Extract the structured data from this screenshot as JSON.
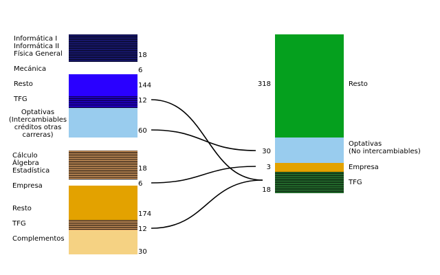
{
  "left": {
    "segments": [
      {
        "id": "basics-top",
        "value": "18",
        "color": "#1e1e8e",
        "stripe": "#000000",
        "labels": [
          "Informática I",
          "Informática II",
          "Física General"
        ]
      },
      {
        "id": "mecanica",
        "value": "6",
        "color": "#ffffff",
        "stripe": "",
        "labels": [
          "Mecánica"
        ]
      },
      {
        "id": "resto-top",
        "value": "144",
        "color": "#2a00ff",
        "stripe": "",
        "labels": [
          "Resto"
        ]
      },
      {
        "id": "tfg-top",
        "value": "12",
        "color": "#2a00ff",
        "stripe": "#000000",
        "labels": [
          "TFG"
        ]
      },
      {
        "id": "optativas-top",
        "value": "60",
        "color": "#99ccee",
        "stripe": "",
        "labels": [
          "Optativas",
          "(Intercambiables",
          "créditos otras",
          "carreras)"
        ]
      },
      {
        "id": "basics-bottom",
        "value": "18",
        "color": "#e8a868",
        "stripe": "#000000",
        "labels": [
          "Cálculo",
          "Álgebra",
          "Estadística"
        ]
      },
      {
        "id": "empresa-left",
        "value": "6",
        "color": "#ffffff",
        "stripe": "",
        "labels": [
          "Empresa"
        ]
      },
      {
        "id": "resto-bottom",
        "value": "174",
        "color": "#e3a200",
        "stripe": "",
        "labels": [
          "Resto"
        ]
      },
      {
        "id": "tfg-bottom",
        "value": "12",
        "color": "#e8a868",
        "stripe": "#000000",
        "labels": [
          "TFG"
        ]
      },
      {
        "id": "complementos",
        "value": "30",
        "color": "#f5d283",
        "stripe": "",
        "labels": [
          "Complementos"
        ]
      }
    ]
  },
  "right": {
    "segments": [
      {
        "id": "resto-right",
        "value": "318",
        "color": "#05a01e",
        "stripe": "",
        "labels": [
          "Resto"
        ]
      },
      {
        "id": "optativas-right",
        "value": "30",
        "color": "#99ccee",
        "stripe": "",
        "labels": [
          "Optativas",
          "(No intercambiables)"
        ]
      },
      {
        "id": "empresa-right",
        "value": "3",
        "color": "#e3a200",
        "stripe": "",
        "labels": [
          "Empresa"
        ]
      },
      {
        "id": "tfg-right",
        "value": "18",
        "color": "#2e8b3a",
        "stripe": "#000000",
        "labels": [
          "TFG"
        ]
      }
    ]
  },
  "connectors": [
    {
      "from": "tfg-top",
      "to": "tfg-right"
    },
    {
      "from": "optativas-top",
      "to": "optativas-right"
    },
    {
      "from": "empresa-left",
      "to": "empresa-right"
    },
    {
      "from": "tfg-bottom",
      "to": "tfg-right"
    }
  ]
}
